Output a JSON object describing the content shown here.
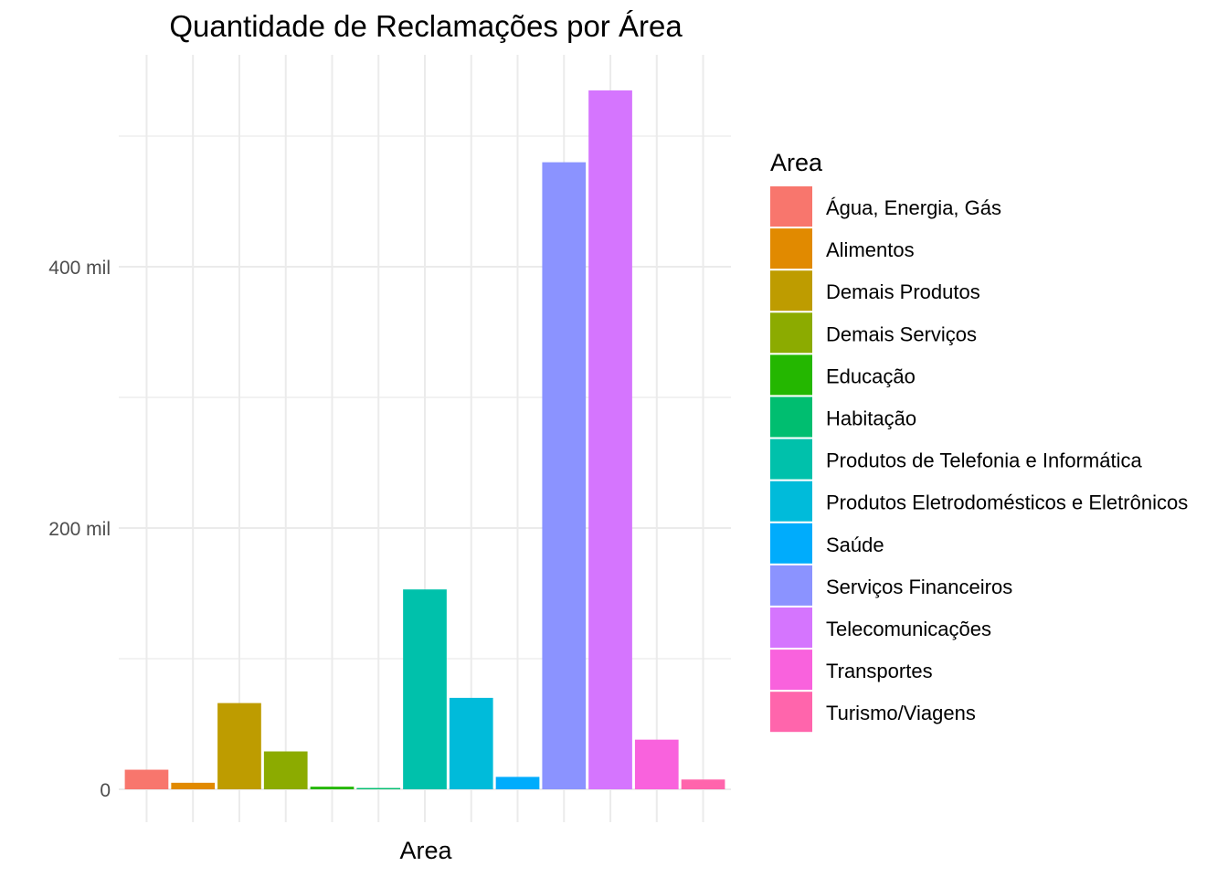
{
  "chart_data": {
    "type": "bar",
    "title": "Quantidade de Reclamações por Área",
    "xlabel": "Area",
    "ylabel": "",
    "ylim": [
      -16000,
      535000
    ],
    "yticks": [
      {
        "value": 0,
        "label": "0"
      },
      {
        "value": 200000,
        "label": "200 mil"
      },
      {
        "value": 400000,
        "label": "400 mil"
      }
    ],
    "y_minor_gridlines": [
      100000,
      300000,
      500000
    ],
    "grid": true,
    "legend_title": "Area",
    "legend_position": "right",
    "categories": [
      "Água, Energia, Gás",
      "Alimentos",
      "Demais Produtos",
      "Demais Serviços",
      "Educação",
      "Habitação",
      "Produtos de Telefonia e Informática",
      "Produtos Eletrodomésticos e Eletrônicos",
      "Saúde",
      "Serviços Financeiros",
      "Telecomunicações",
      "Transportes",
      "Turismo/Viagens"
    ],
    "values": [
      15000,
      5000,
      66000,
      29000,
      2000,
      1000,
      153000,
      70000,
      9500,
      480000,
      535000,
      38000,
      7500
    ],
    "colors": [
      "#F8766D",
      "#E18A00",
      "#BE9C00",
      "#8CAB00",
      "#24B700",
      "#00BE70",
      "#00C1AB",
      "#00BBDA",
      "#00ACFC",
      "#8B93FF",
      "#D575FE",
      "#F962DD",
      "#FF65AC"
    ]
  }
}
